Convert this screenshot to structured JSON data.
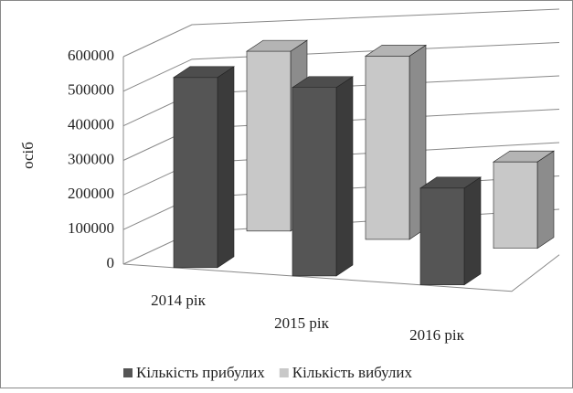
{
  "chart_data": {
    "type": "bar3d",
    "ylabel": "осіб",
    "categories": [
      "2014 рік",
      "2015 рік",
      "2016 рік"
    ],
    "series": [
      {
        "name": "Кількість прибулих",
        "color": "#555555",
        "values": [
          550000,
          545000,
          280000
        ]
      },
      {
        "name": "Кількість вибулих",
        "color": "#c8c8c8",
        "values": [
          520000,
          530000,
          250000
        ]
      }
    ],
    "ylim": [
      0,
      600000
    ],
    "yticks": [
      0,
      100000,
      200000,
      300000,
      400000,
      500000,
      600000
    ],
    "grid": true,
    "legend": "bottom"
  }
}
